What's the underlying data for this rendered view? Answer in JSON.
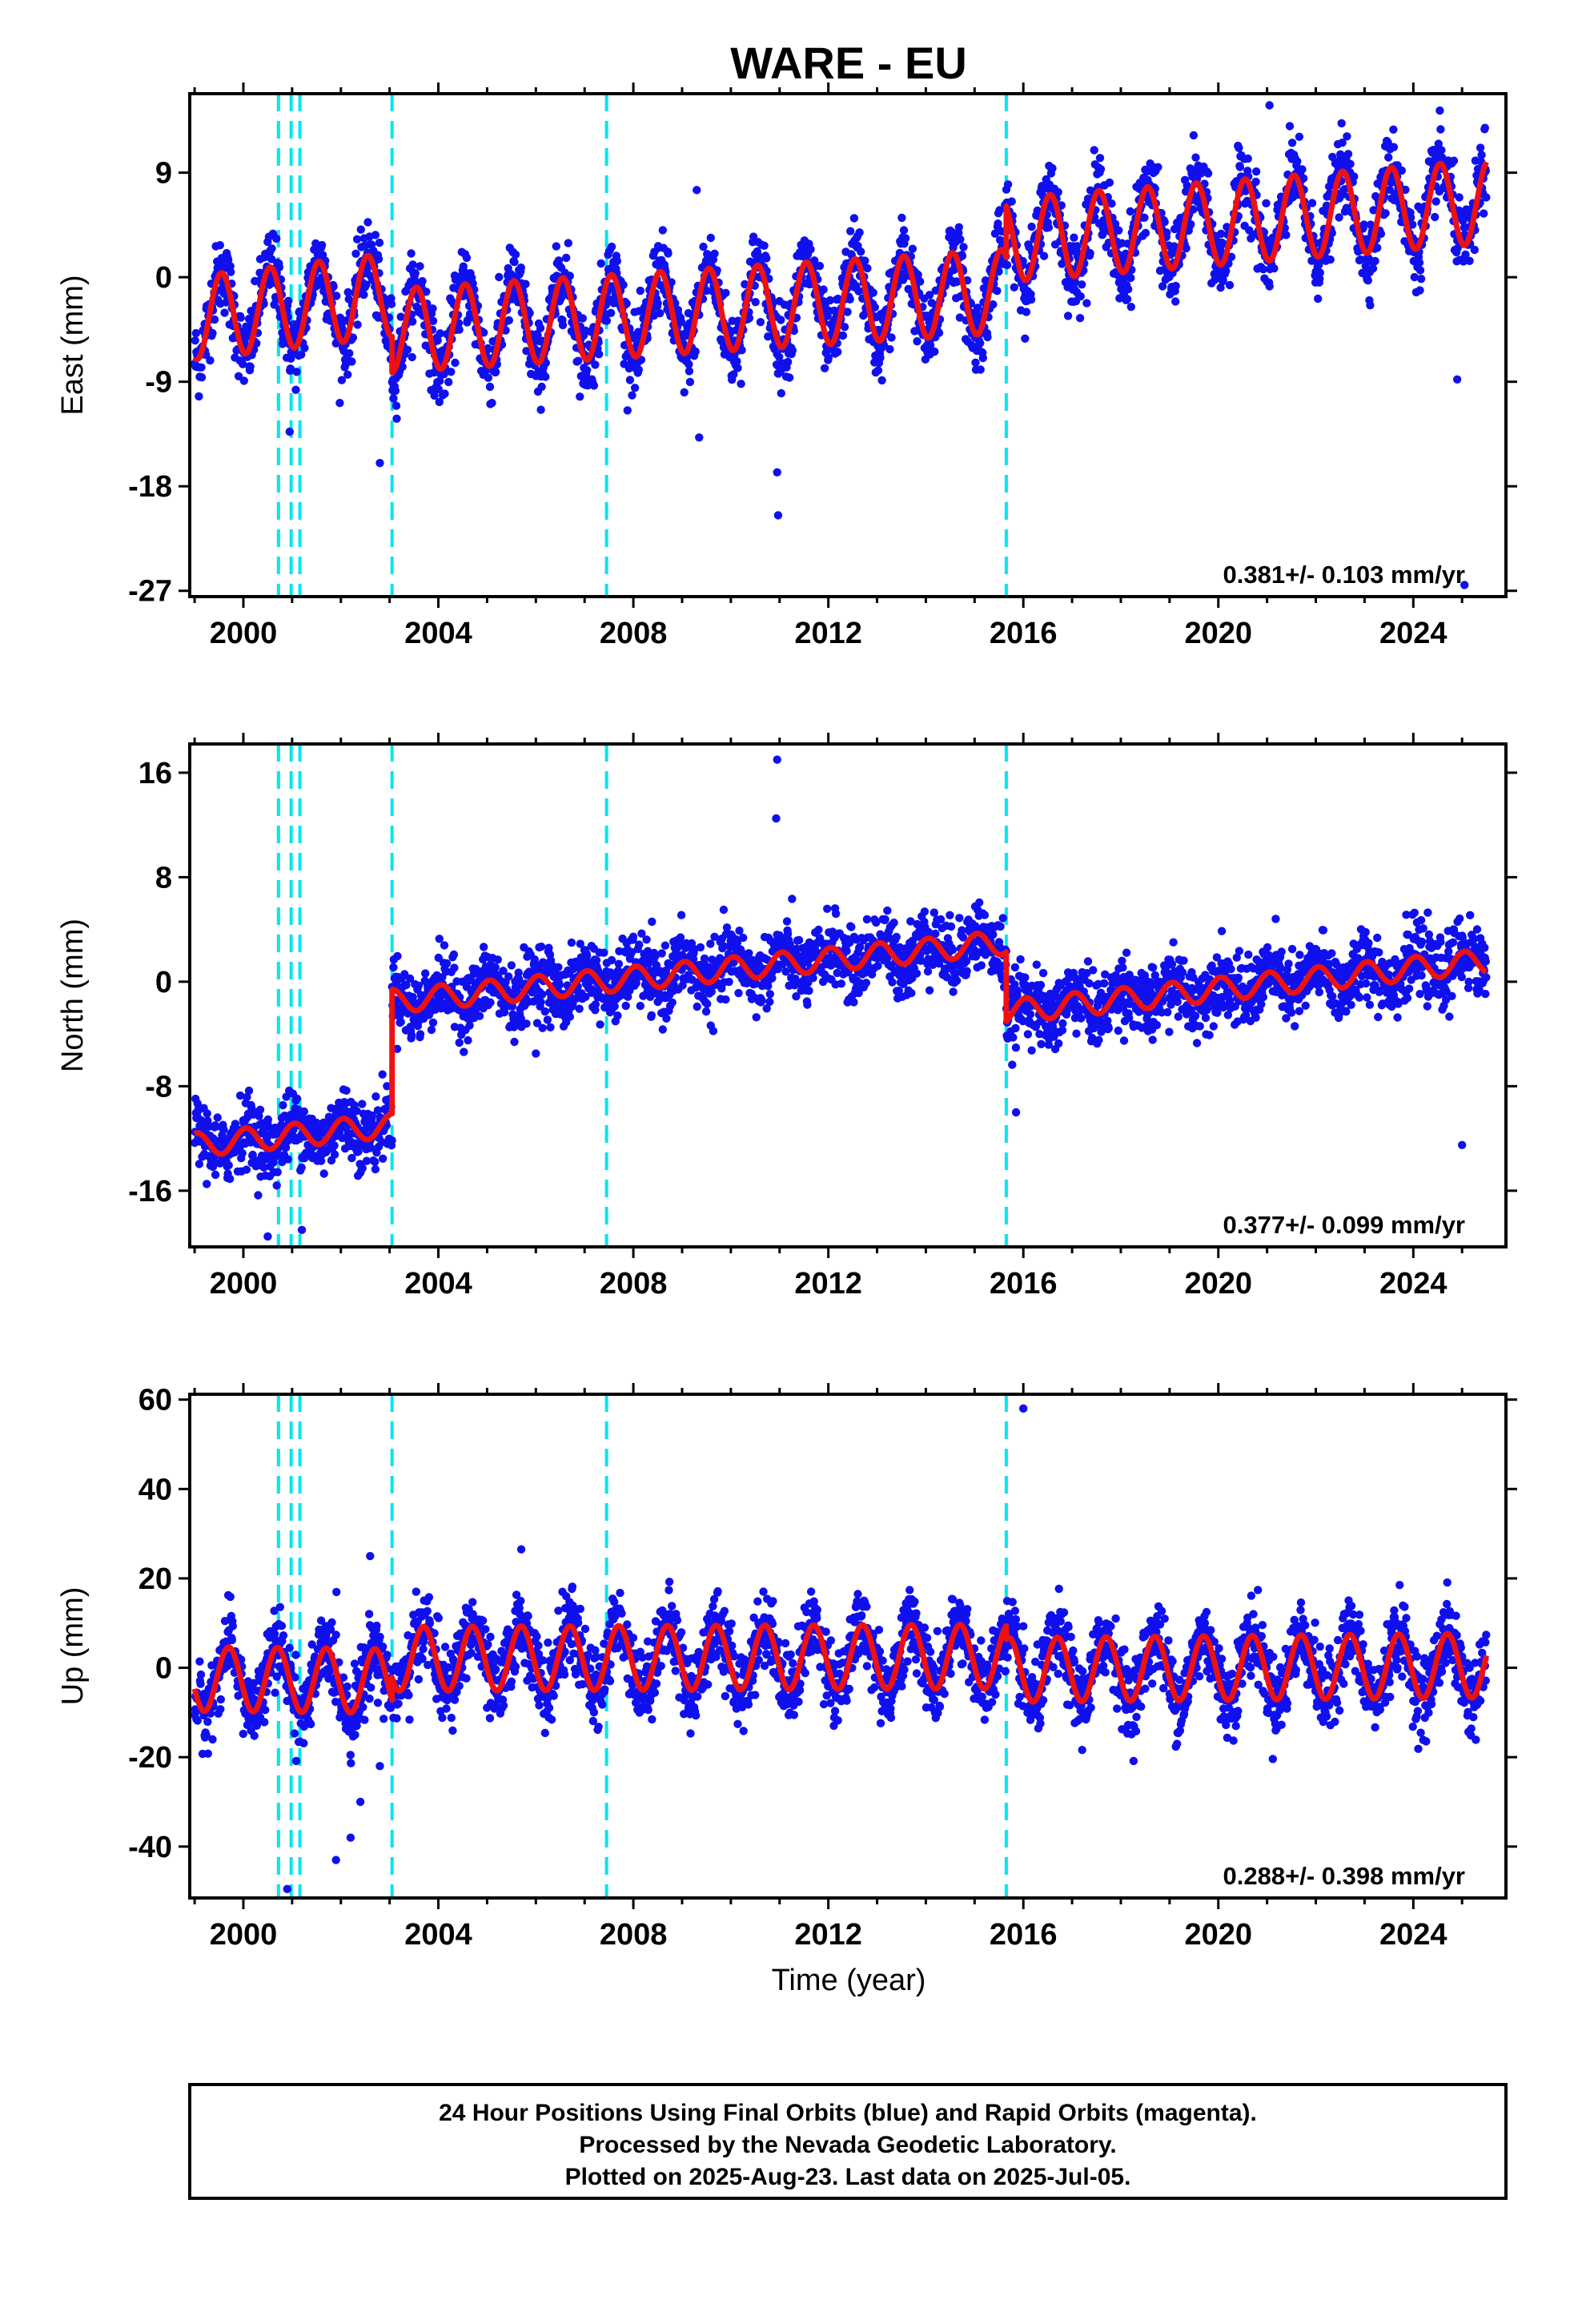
{
  "title": "WARE - EU",
  "colors": {
    "data": "#1010ee",
    "model": "#ee1111",
    "step": "#00e5ee",
    "frame": "#000000"
  },
  "x_tick_labels": [
    "2000",
    "2004",
    "2008",
    "2012",
    "2016",
    "2020",
    "2024"
  ],
  "xlabel": "Time (year)",
  "chart_data": [
    {
      "type": "scatter",
      "component": "east",
      "ylabel": "East (mm)",
      "xlim": [
        1998.9,
        2025.9
      ],
      "ylim": [
        -27.5,
        15.8
      ],
      "yticks": [
        9,
        0,
        -9,
        -18,
        -27
      ],
      "ytick_labels": [
        "9",
        "0",
        "-9",
        "-18",
        "-27"
      ],
      "xticks": [
        2000,
        2004,
        2008,
        2012,
        2016,
        2020,
        2024
      ],
      "grid": false,
      "step_lines_x": [
        2000.72,
        2000.98,
        2001.16,
        2003.05,
        2007.45,
        2015.65
      ],
      "rate_label": "0.381+/- 0.103 mm/yr",
      "series": [
        {
          "kind": "model-curve",
          "color": "#ee1111",
          "segments": [
            {
              "x": [
                1999.0,
                2003.05
              ],
              "y": [
                -3.5,
                -1.5
              ],
              "amp": 3.6,
              "phase": 0.3
            },
            {
              "x": [
                2003.05,
                2015.65
              ],
              "y": [
                -4.6,
                -1.2
              ],
              "amp": 3.6,
              "phase": 0.3
            },
            {
              "x": [
                2015.65,
                2025.5
              ],
              "y": [
                3.2,
                6.5
              ],
              "amp": 3.6,
              "phase": 0.3
            }
          ]
        },
        {
          "kind": "data-points",
          "color": "#1010ee",
          "noise_sd": 1.6,
          "outliers": [
            [
              2000.95,
              -13.3
            ],
            [
              2009.3,
              7.5
            ],
            [
              2009.35,
              -13.8
            ],
            [
              2010.95,
              -16.8
            ],
            [
              2010.97,
              -20.5
            ],
            [
              2021.05,
              14.8
            ],
            [
              2025.05,
              -26.5
            ],
            [
              2024.9,
              -8.8
            ],
            [
              2002.8,
              -16.0
            ]
          ]
        }
      ]
    },
    {
      "type": "scatter",
      "component": "north",
      "ylabel": "North (mm)",
      "xlim": [
        1998.9,
        2025.9
      ],
      "ylim": [
        -20.3,
        18.2
      ],
      "yticks": [
        16,
        8,
        0,
        -8,
        -16
      ],
      "ytick_labels": [
        "16",
        "8",
        "0",
        "-8",
        "-16"
      ],
      "xticks": [
        2000,
        2004,
        2008,
        2012,
        2016,
        2020,
        2024
      ],
      "grid": false,
      "step_lines_x": [
        2000.72,
        2000.98,
        2001.16,
        2003.05,
        2007.45,
        2015.65
      ],
      "rate_label": "0.377+/- 0.099 mm/yr",
      "series": [
        {
          "kind": "model-curve",
          "color": "#ee1111",
          "segments": [
            {
              "x": [
                1999.0,
                2003.05
              ],
              "y": [
                -12.5,
                -11.0
              ],
              "amp": 0.9,
              "phase": 0.8
            },
            {
              "x": [
                2003.05,
                2015.65
              ],
              "y": [
                -1.5,
                3.0
              ],
              "amp": 0.9,
              "phase": 0.8
            },
            {
              "x": [
                2015.65,
                2025.5
              ],
              "y": [
                -2.3,
                1.6
              ],
              "amp": 0.9,
              "phase": 0.8
            }
          ]
        },
        {
          "kind": "data-points",
          "color": "#1010ee",
          "noise_sd": 1.3,
          "outliers": [
            [
              2010.95,
              17.0
            ],
            [
              2010.93,
              12.5
            ],
            [
              2015.85,
              -10.0
            ],
            [
              2025.0,
              -12.5
            ],
            [
              2000.5,
              -19.5
            ],
            [
              2001.2,
              -19.0
            ],
            [
              2006.0,
              -5.5
            ]
          ]
        }
      ]
    },
    {
      "type": "scatter",
      "component": "up",
      "ylabel": "Up (mm)",
      "xlim": [
        1998.9,
        2025.9
      ],
      "ylim": [
        -51.5,
        61.2
      ],
      "yticks": [
        60,
        40,
        20,
        0,
        -20,
        -40
      ],
      "ytick_labels": [
        "60",
        "40",
        "20",
        "0",
        "-20",
        "-40"
      ],
      "xticks": [
        2000,
        2004,
        2008,
        2012,
        2016,
        2020,
        2024
      ],
      "grid": false,
      "step_lines_x": [
        2000.72,
        2000.98,
        2001.16,
        2003.05,
        2007.45,
        2015.65
      ],
      "rate_label": "0.288+/- 0.398 mm/yr",
      "series": [
        {
          "kind": "model-curve",
          "color": "#ee1111",
          "segments": [
            {
              "x": [
                1999.0,
                2003.05
              ],
              "y": [
                -2.5,
                -3.0
              ],
              "amp": 7.2,
              "phase": 0.45
            },
            {
              "x": [
                2003.05,
                2015.65
              ],
              "y": [
                2.0,
                2.5
              ],
              "amp": 7.2,
              "phase": 0.45
            },
            {
              "x": [
                2015.65,
                2025.5
              ],
              "y": [
                -0.5,
                0.5
              ],
              "amp": 7.2,
              "phase": 0.45
            }
          ]
        },
        {
          "kind": "data-points",
          "color": "#1010ee",
          "noise_sd": 4.2,
          "outliers": [
            [
              2016.0,
              58.0
            ],
            [
              2005.7,
              26.5
            ],
            [
              2002.6,
              25.0
            ],
            [
              2002.2,
              -38.0
            ],
            [
              2001.9,
              -43.0
            ],
            [
              2002.4,
              -30.0
            ],
            [
              2000.9,
              -49.5
            ],
            [
              2002.8,
              -22.0
            ]
          ]
        }
      ]
    }
  ],
  "footer": {
    "line1": "24 Hour Positions Using Final Orbits (blue) and Rapid Orbits (magenta).",
    "line2": "Processed by the Nevada Geodetic Laboratory.",
    "line3": "Plotted on 2025-Aug-23. Last data on 2025-Jul-05."
  }
}
